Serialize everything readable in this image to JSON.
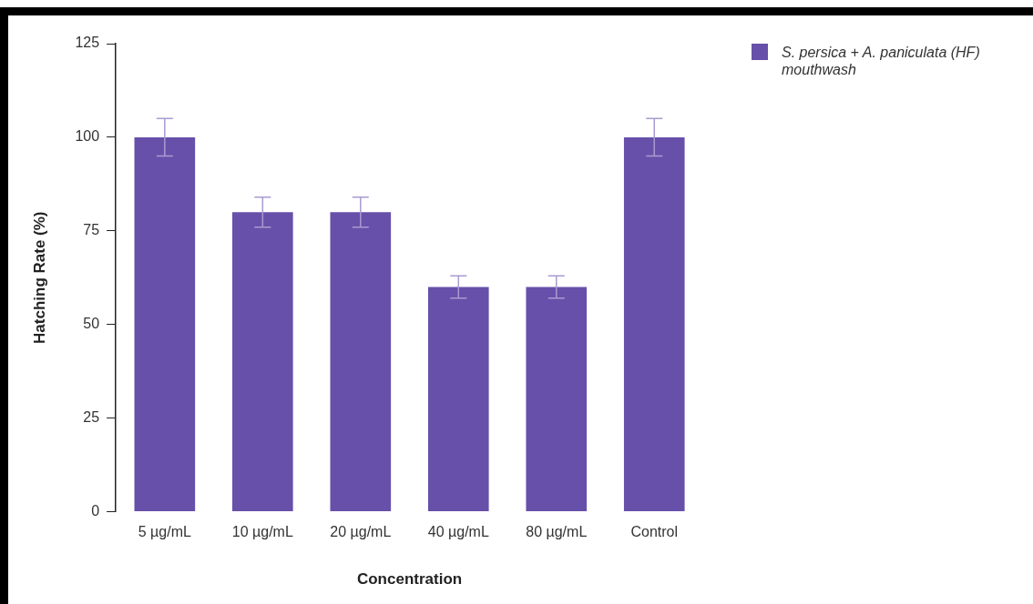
{
  "chart_data": {
    "type": "bar",
    "xlabel": "Concentration",
    "ylabel": "Hatching Rate (%)",
    "categories": [
      "5 µg/mL",
      "10 µg/mL",
      "20 µg/mL",
      "40 µg/mL",
      "80 µg/mL",
      "Control"
    ],
    "series": [
      {
        "name": "S. persica + A. paniculata (HF) mouthwash",
        "color": "#6750aa",
        "values": [
          100,
          80,
          80,
          60,
          60,
          100
        ],
        "errors": [
          5,
          4,
          4,
          3,
          3,
          5
        ]
      }
    ],
    "ylim": [
      0,
      125
    ],
    "yticks": [
      0,
      25,
      50,
      75,
      100,
      125
    ],
    "legend": "top right"
  }
}
